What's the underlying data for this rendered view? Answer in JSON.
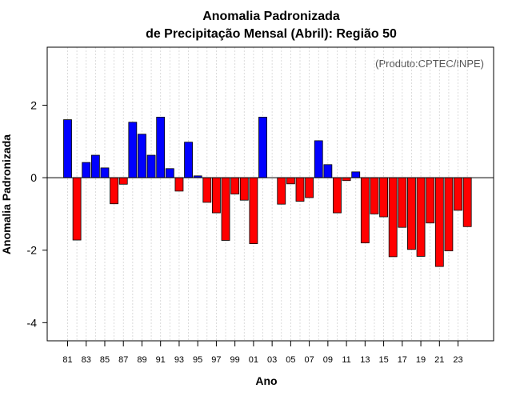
{
  "chart_data": {
    "type": "bar",
    "title": "Anomalia Padronizada",
    "subtitle": "de Precipitação Mensal (Abril): Região 50",
    "xlabel": "Ano",
    "ylabel": "Anomalia Padronizada",
    "annotation": "(Produto:CPTEC/INPE)",
    "ylim": [
      -4.5,
      3.6
    ],
    "yticks": [
      -4,
      -2,
      0,
      2
    ],
    "ytick_labels": [
      "-4",
      "-2",
      "0",
      "2"
    ],
    "grid": true,
    "categories": [
      "81",
      "82",
      "83",
      "84",
      "85",
      "86",
      "87",
      "88",
      "89",
      "90",
      "91",
      "92",
      "93",
      "94",
      "95",
      "96",
      "97",
      "98",
      "99",
      "00",
      "01",
      "02",
      "03",
      "04",
      "05",
      "06",
      "07",
      "08",
      "09",
      "10",
      "11",
      "12",
      "13",
      "14",
      "15",
      "16",
      "17",
      "18",
      "19",
      "20",
      "21",
      "22",
      "23",
      "24"
    ],
    "x_tick_labels": [
      "81",
      "83",
      "85",
      "87",
      "89",
      "91",
      "93",
      "95",
      "97",
      "99",
      "01",
      "03",
      "05",
      "07",
      "09",
      "11",
      "13",
      "15",
      "17",
      "19",
      "21",
      "23"
    ],
    "values": [
      1.6,
      -1.72,
      0.42,
      0.62,
      0.27,
      -0.72,
      -0.18,
      1.53,
      1.2,
      0.62,
      1.67,
      0.25,
      -0.37,
      0.98,
      0.05,
      -0.68,
      -0.97,
      -1.73,
      -0.45,
      -0.62,
      -1.82,
      1.67,
      0.0,
      -0.73,
      -0.17,
      -0.65,
      -0.55,
      1.02,
      0.36,
      -0.97,
      -0.08,
      0.16,
      -1.8,
      -1.0,
      -1.08,
      -2.18,
      -1.37,
      -1.98,
      -2.17,
      -1.25,
      -2.45,
      -2.02,
      -0.9,
      -1.35
    ],
    "colors": {
      "positive": "#0000ff",
      "negative": "#ff0000",
      "zero_line": "#000000",
      "grid": "#d3d3d3"
    }
  }
}
